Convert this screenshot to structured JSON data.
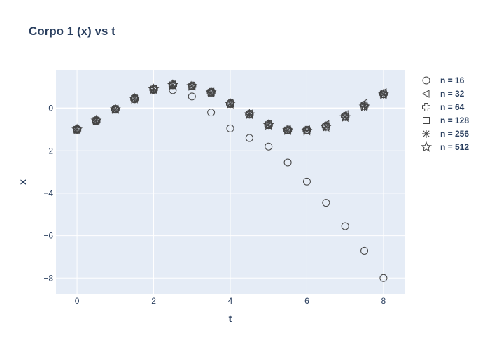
{
  "chart_data": {
    "type": "scatter",
    "title": "Corpo 1 (x) vs t",
    "xlabel": "t",
    "ylabel": "x",
    "xlim": [
      -0.55,
      8.55
    ],
    "ylim": [
      -8.75,
      1.8
    ],
    "xticks": [
      0,
      2,
      4,
      6,
      8
    ],
    "yticks": [
      0,
      -2,
      -4,
      -6,
      -8
    ],
    "ytick_labels": [
      "0",
      "−2",
      "−4",
      "−6",
      "−8"
    ],
    "grid": true,
    "legend_position": "right",
    "colors": {
      "plot_bg": "#e5ecf6",
      "grid": "#ffffff",
      "text": "#2a3f5f",
      "marker_stroke": "#444444"
    },
    "x": [
      0,
      0.5,
      1,
      1.5,
      2,
      2.5,
      3,
      3.5,
      4,
      4.5,
      5,
      5.5,
      6,
      6.5,
      7,
      7.5,
      8
    ],
    "series": [
      {
        "name": "n = 16",
        "marker": "circle",
        "values": [
          -1.0,
          -0.58,
          -0.05,
          0.42,
          0.85,
          0.85,
          0.55,
          -0.2,
          -0.95,
          -1.4,
          -1.8,
          -2.55,
          -3.45,
          -4.45,
          -5.55,
          -6.72,
          -8.0
        ]
      },
      {
        "name": "n = 32",
        "marker": "triangle-left",
        "values": [
          -1.0,
          -0.57,
          -0.03,
          0.47,
          0.92,
          1.12,
          1.07,
          0.77,
          0.25,
          -0.25,
          -0.73,
          -1.0,
          -1.0,
          -0.75,
          -0.28,
          0.25,
          0.75
        ]
      },
      {
        "name": "n = 64",
        "marker": "cross",
        "values": [
          -1.0,
          -0.58,
          -0.05,
          0.45,
          0.9,
          1.1,
          1.05,
          0.75,
          0.22,
          -0.28,
          -0.77,
          -1.02,
          -1.03,
          -0.85,
          -0.38,
          0.13,
          0.68
        ]
      },
      {
        "name": "n = 128",
        "marker": "square",
        "values": [
          -1.0,
          -0.58,
          -0.05,
          0.45,
          0.89,
          1.09,
          1.04,
          0.74,
          0.21,
          -0.29,
          -0.78,
          -1.03,
          -1.05,
          -0.87,
          -0.4,
          0.1,
          0.66
        ]
      },
      {
        "name": "n = 256",
        "marker": "asterisk",
        "values": [
          -1.0,
          -0.58,
          -0.05,
          0.45,
          0.89,
          1.09,
          1.04,
          0.74,
          0.21,
          -0.29,
          -0.78,
          -1.03,
          -1.05,
          -0.88,
          -0.41,
          0.09,
          0.65
        ]
      },
      {
        "name": "n = 512",
        "marker": "star",
        "values": [
          -1.0,
          -0.58,
          -0.05,
          0.45,
          0.89,
          1.09,
          1.04,
          0.74,
          0.21,
          -0.29,
          -0.79,
          -1.04,
          -1.06,
          -0.88,
          -0.42,
          0.08,
          0.64
        ]
      }
    ]
  }
}
